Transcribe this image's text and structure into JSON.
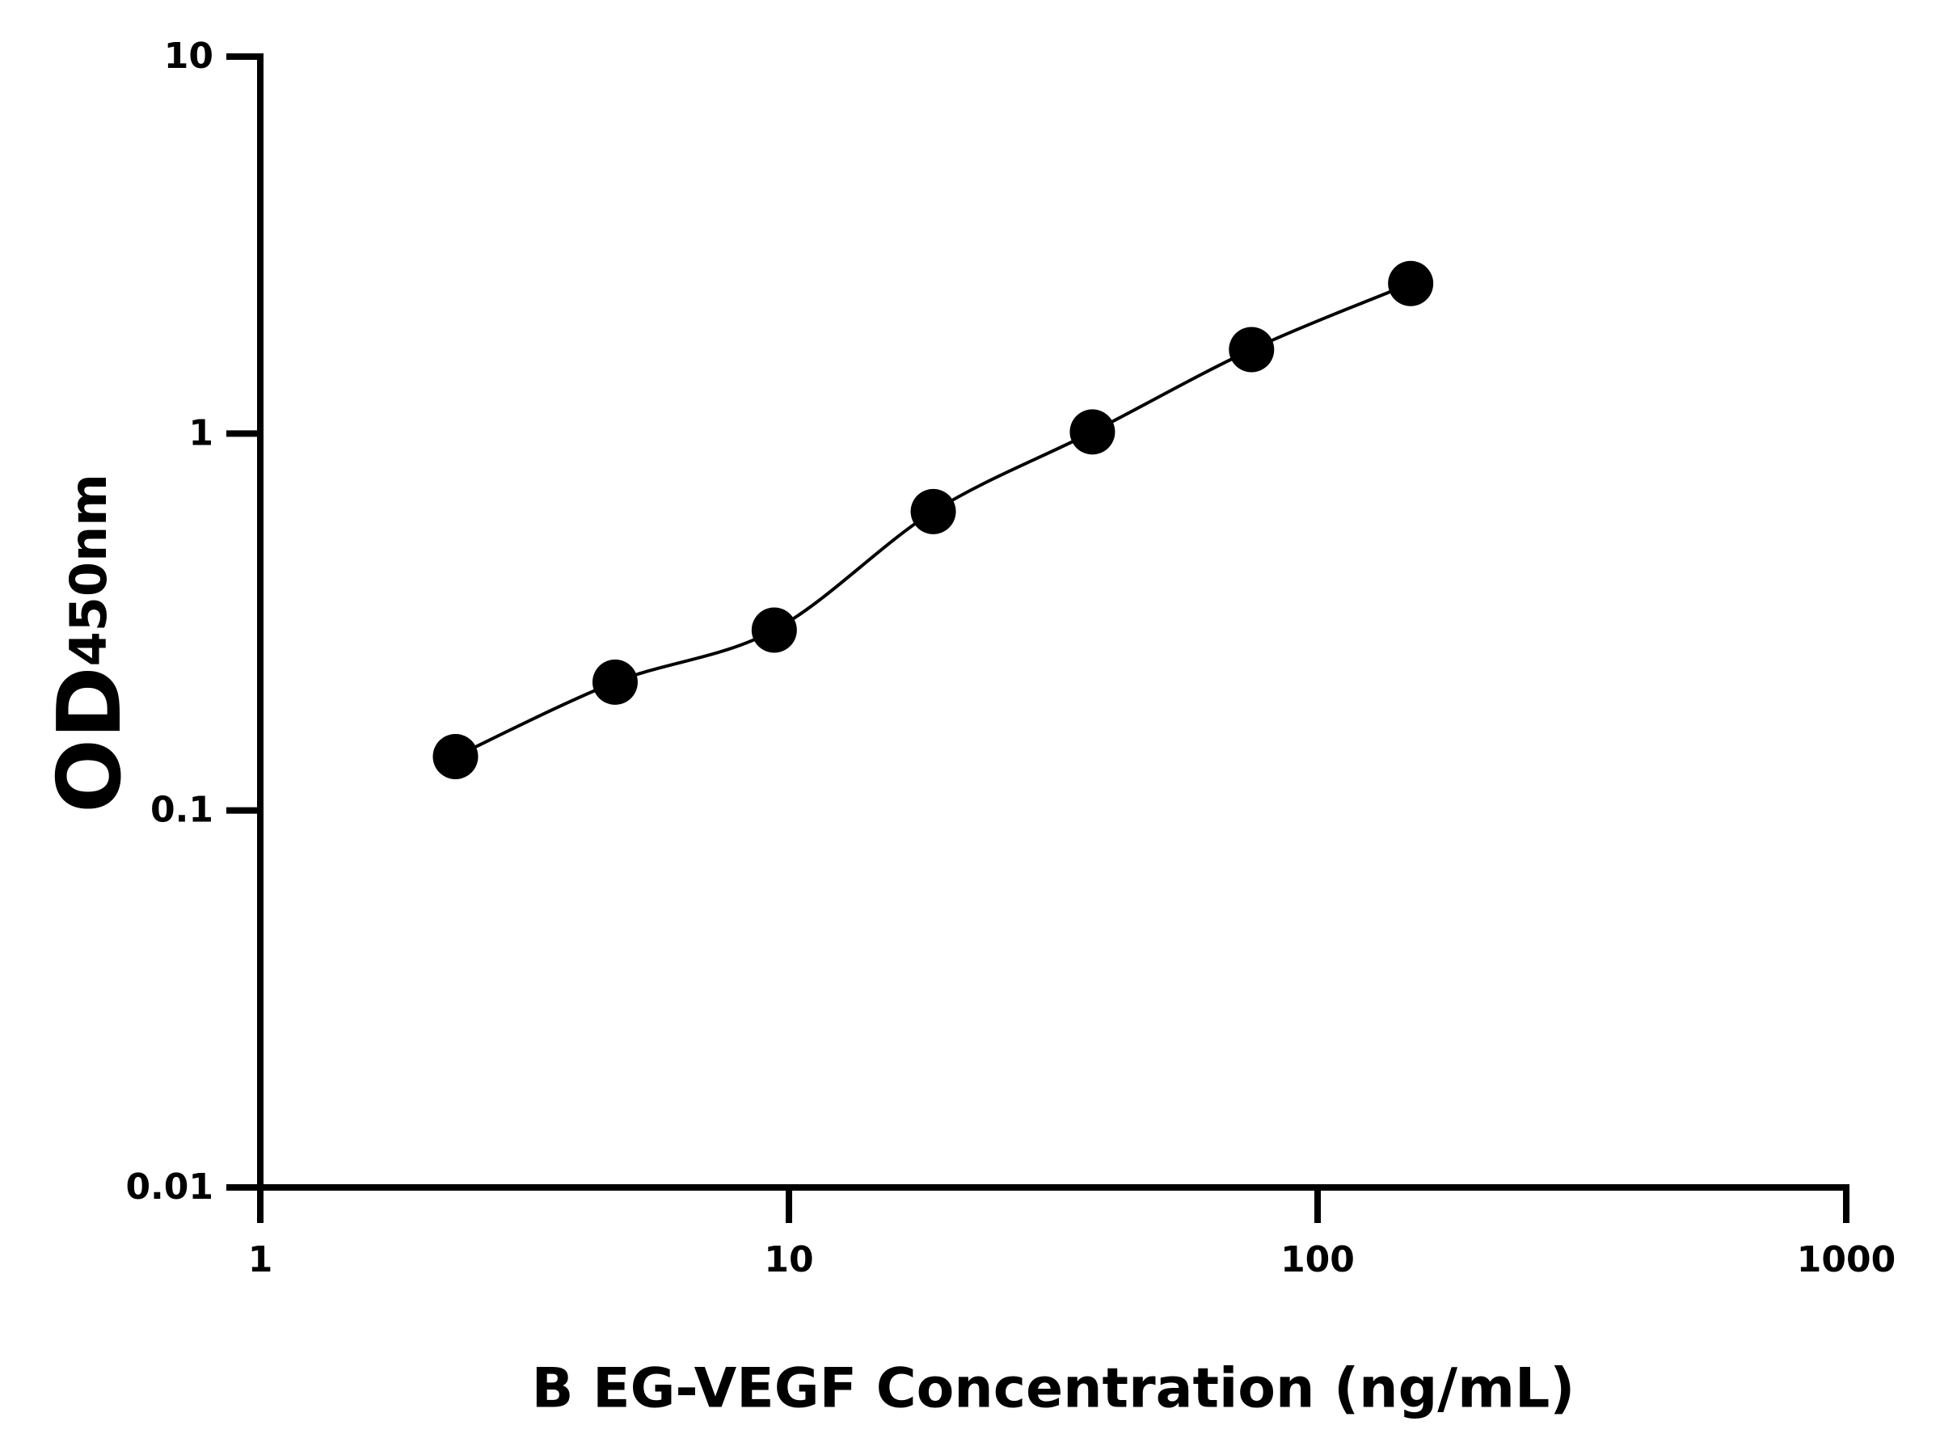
{
  "chart_data": {
    "type": "scatter",
    "x_label": "B EG-VEGF Concentration (ng/mL)",
    "y_label": "OD",
    "y_label_subscript": "450nm",
    "x": [
      2.34,
      4.69,
      9.38,
      18.75,
      37.5,
      75,
      150
    ],
    "values": [
      0.139,
      0.219,
      0.301,
      0.621,
      1.01,
      1.67,
      2.5
    ],
    "color": "#000000",
    "fit_line": true,
    "x_log": true,
    "y_log": true,
    "xlim": [
      1,
      1000
    ],
    "xticks": [
      1,
      10,
      100,
      1000
    ],
    "ylim": [
      0.01,
      10
    ],
    "yticks": [
      0.01,
      0.1,
      1,
      10
    ]
  }
}
